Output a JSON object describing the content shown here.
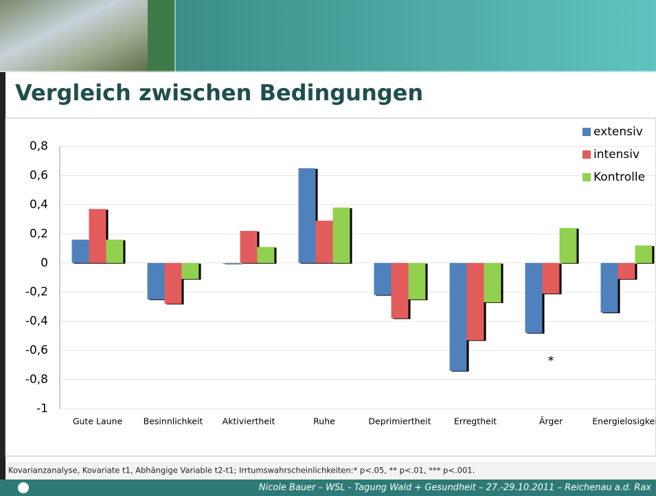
{
  "title": "Vergleich zwischen Bedingungen",
  "chart_data": {
    "type": "bar",
    "categories": [
      "Gute Laune",
      "Besinnlichkeit",
      "Aktiviertheit",
      "Ruhe",
      "Deprimiertheit",
      "Erregtheit",
      "Ärger",
      "Energielosigkeit"
    ],
    "series": [
      {
        "name": "extensiv",
        "color": "#4f81bd",
        "values": [
          0.16,
          -0.25,
          0.0,
          0.65,
          -0.22,
          -0.74,
          -0.48,
          -0.34
        ]
      },
      {
        "name": "intensiv",
        "color": "#e35b5b",
        "values": [
          0.37,
          -0.28,
          0.22,
          0.29,
          -0.38,
          -0.53,
          -0.21,
          -0.11
        ]
      },
      {
        "name": "Kontrolle",
        "color": "#92d050",
        "values": [
          0.16,
          -0.11,
          0.11,
          0.38,
          -0.25,
          -0.27,
          0.24,
          0.12
        ]
      }
    ],
    "ylim": [
      -1,
      0.8
    ],
    "yticks": [
      {
        "value": -1,
        "label": "-1"
      },
      {
        "value": -0.8,
        "label": "-0,8"
      },
      {
        "value": -0.6,
        "label": "-0,6"
      },
      {
        "value": -0.4,
        "label": "-0,4"
      },
      {
        "value": -0.2,
        "label": "-0,2"
      },
      0,
      {
        "value": 0.2,
        "label": "0,2"
      },
      {
        "value": 0.4,
        "label": "0,4"
      },
      {
        "value": 0.6,
        "label": "0,6"
      },
      {
        "value": 0.8,
        "label": "0,8"
      }
    ],
    "grid": true,
    "legend": "top-right",
    "annotation": "*"
  },
  "footnote": "Kovarianzanalyse, Kovariate t1, Abhängige Variable t2-t1; Irrtumswahrscheinlichkeiten:* p<.05, ** p<.01, *** p<.001.",
  "footer": "Nicole Bauer – WSL - Tagung Wald + Gesundheit  –  27.-29.10.2011 – Reichenau a.d. Rax"
}
